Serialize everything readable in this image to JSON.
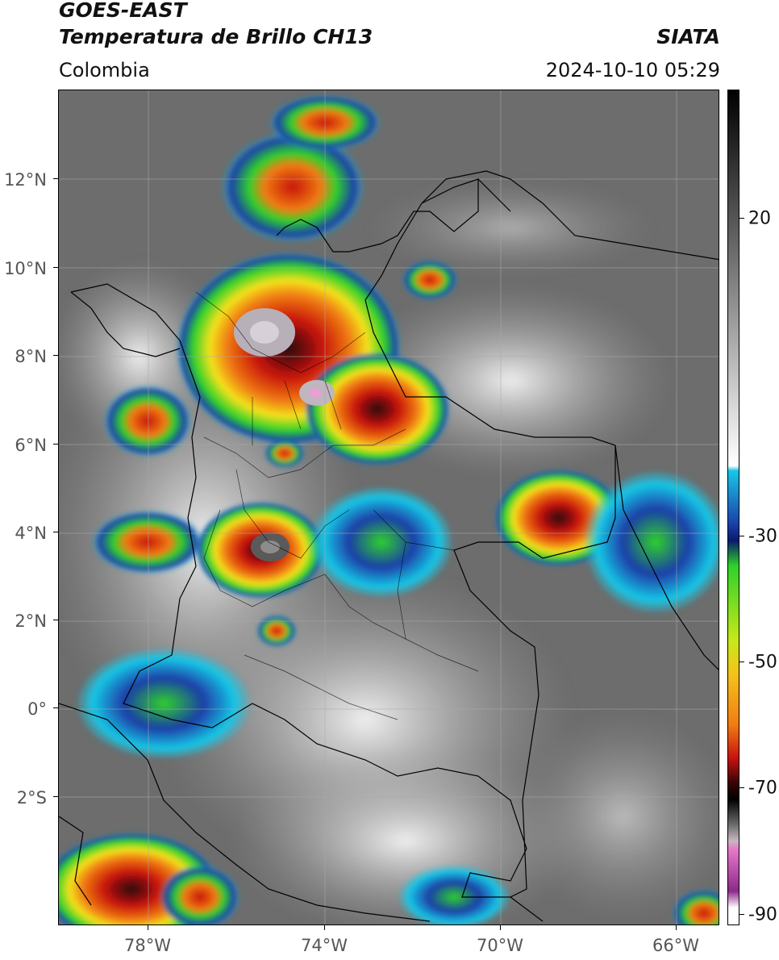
{
  "header": {
    "satellite": "GOES-EAST",
    "product": "Temperatura de Brillo CH13",
    "brand": "SIATA",
    "region": "Colombia",
    "timestamp": "2024-10-10 05:29"
  },
  "map": {
    "lat_labels": [
      "12°N",
      "10°N",
      "8°N",
      "6°N",
      "4°N",
      "2°N",
      "0°",
      "2°S"
    ],
    "lon_labels": [
      "78°W",
      "74°W",
      "70°W",
      "66°W"
    ],
    "colors": {
      "background_gray": "#6d6d6d",
      "cloud_light": "#e8e8e8",
      "cold_cyan": "#19c6e6",
      "cold_blue": "#1a3fa8",
      "cold_green": "#2fd12a",
      "cold_yellow": "#f4e21c",
      "cold_orange": "#f07d12",
      "cold_red": "#c8140f",
      "coldest_dark": "#2a0808",
      "overshoot_gray": "#b8b0b8",
      "overshoot_pink": "#e6a0d2"
    }
  },
  "colorbar": {
    "labels": [
      "20",
      "-30",
      "-50",
      "-70",
      "-90"
    ]
  }
}
